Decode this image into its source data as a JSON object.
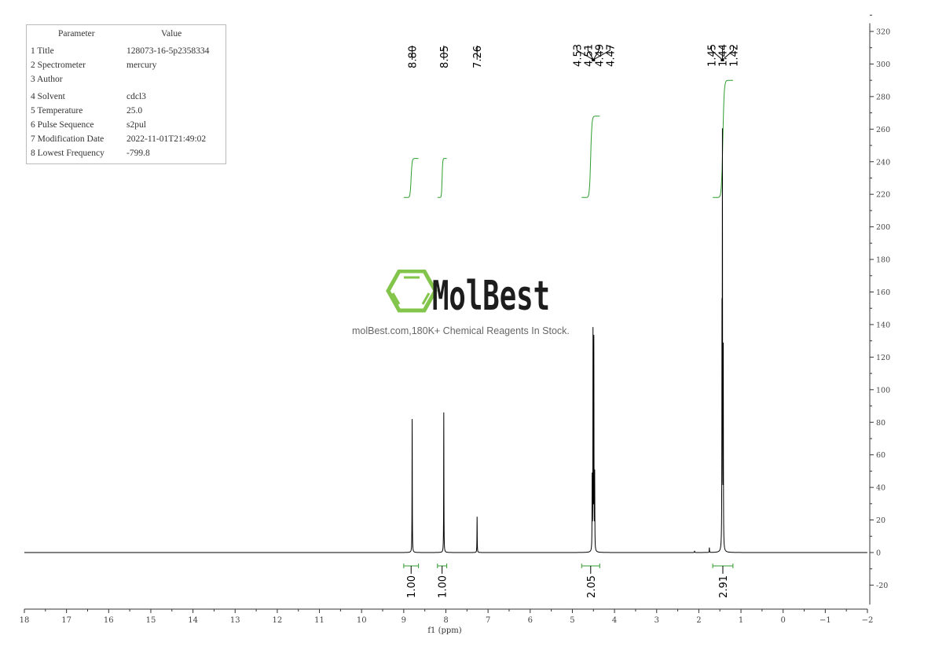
{
  "parameters": {
    "header": [
      "Parameter",
      "Value"
    ],
    "rows": [
      [
        "1 Title",
        "128073-16-5p2358334"
      ],
      [
        "2 Spectrometer",
        "mercury"
      ],
      [
        "3 Author",
        ""
      ],
      [
        "4 Solvent",
        "cdcl3"
      ],
      [
        "5 Temperature",
        "25.0"
      ],
      [
        "6 Pulse Sequence",
        "s2pul"
      ],
      [
        "7 Modification Date",
        "2022-11-01T21:49:02"
      ],
      [
        "8 Lowest Frequency",
        "-799.8"
      ]
    ]
  },
  "watermark": {
    "logo_text": "MolBest",
    "tagline": "molBest.com,180K+ Chemical Reagents In Stock.",
    "logo_color": "#7dc242"
  },
  "chart_data": {
    "type": "line",
    "title": "",
    "xlabel": "f1 (ppm)",
    "ylabel": "",
    "xlim": [
      18,
      -2
    ],
    "ylim": [
      -32,
      325
    ],
    "x_ticks": [
      18,
      17,
      16,
      15,
      14,
      13,
      12,
      11,
      10,
      9,
      8,
      7,
      6,
      5,
      4,
      3,
      2,
      1,
      0,
      -1,
      -2
    ],
    "y_ticks": [
      -20,
      0,
      20,
      40,
      60,
      80,
      100,
      120,
      140,
      160,
      180,
      200,
      220,
      240,
      260,
      280,
      300,
      320
    ],
    "y_tick_labels": [
      "-20",
      "0",
      "20",
      "40",
      "60",
      "80",
      "100",
      "120",
      "140",
      "160",
      "180",
      "200",
      "220",
      "240",
      "260",
      "280",
      "300",
      "320"
    ],
    "x_tick_labels": [
      "18",
      "17",
      "16",
      "15",
      "14",
      "13",
      "12",
      "11",
      "10",
      "9",
      "8",
      "7",
      "6",
      "5",
      "4",
      "3",
      "2",
      "1",
      "0",
      "−1",
      "−2"
    ],
    "grid": false,
    "line_color": "#000000",
    "integral_color": "#2e9e2e",
    "peaks": [
      {
        "ppm": 8.8,
        "height": 82
      },
      {
        "ppm": 8.05,
        "height": 86
      },
      {
        "ppm": 7.26,
        "height": 22
      },
      {
        "ppm": 4.53,
        "height": 44
      },
      {
        "ppm": 4.51,
        "height": 133
      },
      {
        "ppm": 4.49,
        "height": 128
      },
      {
        "ppm": 4.47,
        "height": 46
      },
      {
        "ppm": 1.75,
        "height": 3
      },
      {
        "ppm": 2.1,
        "height": 1
      },
      {
        "ppm": 1.45,
        "height": 128
      },
      {
        "ppm": 1.44,
        "height": 243
      },
      {
        "ppm": 1.42,
        "height": 120
      }
    ],
    "peak_labels": [
      {
        "labels": [
          "8.80"
        ],
        "center": 8.8
      },
      {
        "labels": [
          "8.05"
        ],
        "center": 8.05
      },
      {
        "labels": [
          "7.26"
        ],
        "center": 7.26
      },
      {
        "labels": [
          "4.53",
          "4.51",
          "4.49",
          "4.47"
        ],
        "center": 4.5
      },
      {
        "labels": [
          "1.45",
          "1.44",
          "1.42"
        ],
        "center": 1.44
      }
    ],
    "integrals": [
      {
        "from": 9.0,
        "to": 8.65,
        "value": "1.00",
        "curve_from": 218,
        "curve_to": 242
      },
      {
        "from": 8.2,
        "to": 7.98,
        "value": "1.00",
        "curve_from": 218,
        "curve_to": 242
      },
      {
        "from": 4.78,
        "to": 4.35,
        "value": "2.05",
        "curve_from": 218,
        "curve_to": 268
      },
      {
        "from": 1.67,
        "to": 1.19,
        "value": "2.91",
        "curve_from": 218,
        "curve_to": 290
      }
    ]
  }
}
